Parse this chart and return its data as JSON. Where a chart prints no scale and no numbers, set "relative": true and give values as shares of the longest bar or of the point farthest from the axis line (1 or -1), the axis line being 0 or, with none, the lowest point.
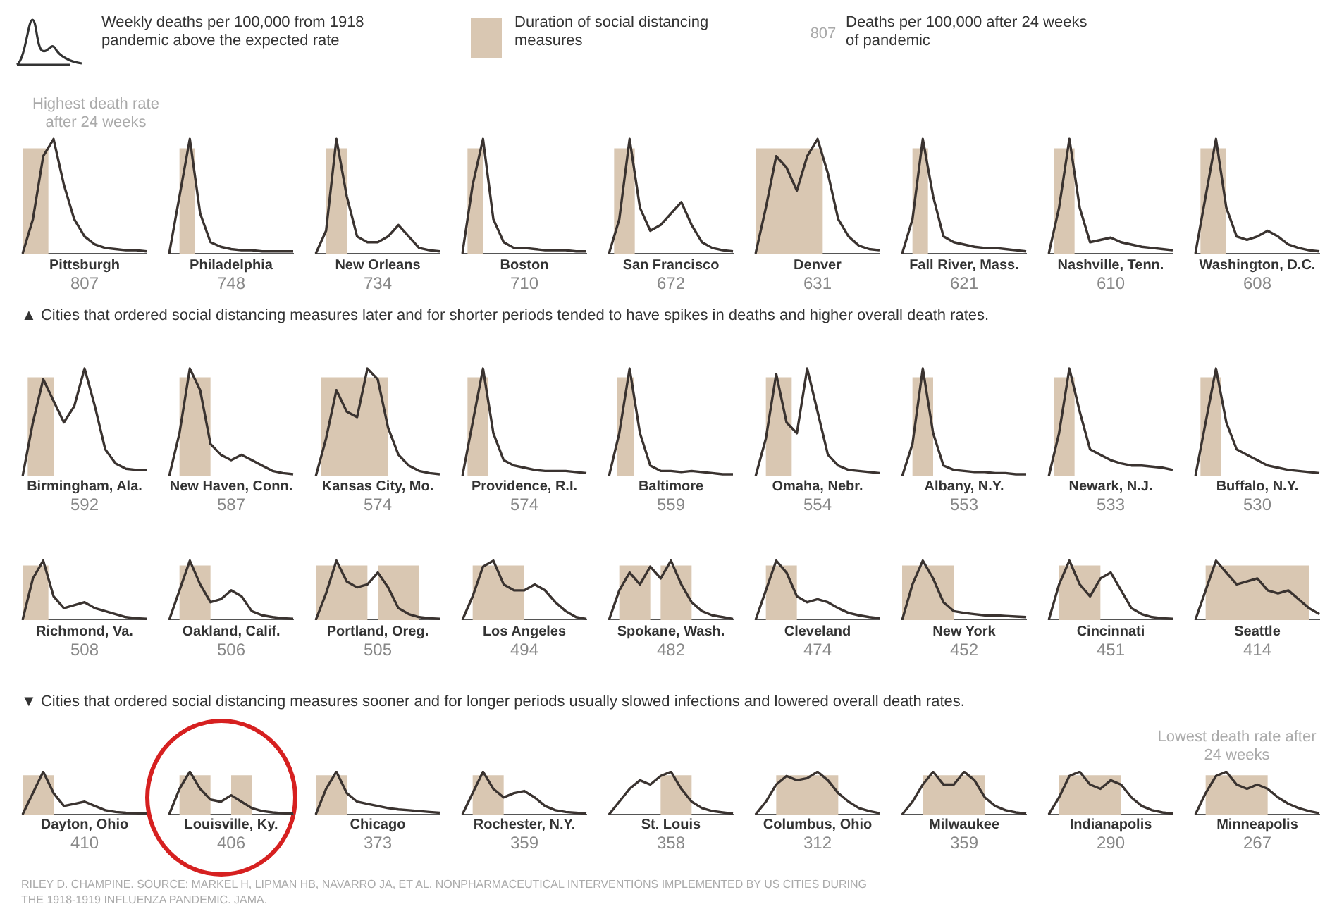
{
  "chart_data": [
    {
      "type": "other",
      "annotations": [
        "Weekly deaths per 100,000 from 1918 pandemic above the expected rate",
        "Duration of social distancing measures",
        "807",
        "Deaths per 100,000 after 24 weeks of pandemic",
        "Highest death rate after 24 weeks",
        "▲ Cities that ordered social distancing measures later and for shorter periods tended to have spikes in deaths and higher overall death rates.",
        "▼ Cities that ordered social distancing measures sooner and for longer periods usually slowed infections and lowered overall death rates.",
        "Lowest death rate after 24 weeks",
        "RILEY D. CHAMPINE. SOURCE: MARKEL H, LIPMAN HB, NAVARRO JA, ET AL. NONPHARMACEUTICAL INTERVENTIONS IMPLEMENTED BY US CITIES DURING THE 1918-1919 INFLUENZA PANDEMIC. JAMA."
      ]
    },
    {
      "type": "line",
      "title": "Pittsburgh",
      "annotations": [
        "807"
      ],
      "relative": true,
      "tick_labels": false,
      "color": "#3a3330",
      "categories": [
        null,
        null,
        null,
        null,
        null,
        null,
        null,
        null,
        null,
        null,
        null,
        null,
        null
      ],
      "values": [
        0,
        0.3,
        0.85,
        1,
        0.6,
        0.3,
        0.15,
        0.08,
        0.05,
        0.04,
        0.03,
        0.03,
        0.02
      ]
    },
    {
      "type": "line",
      "title": "Philadelphia",
      "annotations": [
        "748"
      ],
      "relative": true,
      "tick_labels": false,
      "color": "#3a3330",
      "categories": [
        null,
        null,
        null,
        null,
        null,
        null,
        null,
        null,
        null,
        null,
        null,
        null,
        null
      ],
      "values": [
        0,
        0.5,
        1,
        0.35,
        0.1,
        0.06,
        0.04,
        0.03,
        0.03,
        0.02,
        0.02,
        0.02,
        0.02
      ]
    },
    {
      "type": "line",
      "title": "New Orleans",
      "annotations": [
        "734"
      ],
      "relative": true,
      "tick_labels": false,
      "color": "#3a3330",
      "categories": [
        null,
        null,
        null,
        null,
        null,
        null,
        null,
        null,
        null,
        null,
        null,
        null,
        null
      ],
      "values": [
        0,
        0.2,
        1,
        0.5,
        0.15,
        0.1,
        0.1,
        0.15,
        0.25,
        0.15,
        0.05,
        0.03,
        0.02
      ]
    },
    {
      "type": "line",
      "title": "Boston",
      "annotations": [
        "710"
      ],
      "relative": true,
      "tick_labels": false,
      "color": "#3a3330",
      "categories": [
        null,
        null,
        null,
        null,
        null,
        null,
        null,
        null,
        null,
        null,
        null,
        null,
        null
      ],
      "values": [
        0,
        0.6,
        1,
        0.3,
        0.1,
        0.05,
        0.05,
        0.04,
        0.03,
        0.03,
        0.03,
        0.02,
        0.02
      ]
    },
    {
      "type": "line",
      "title": "San Francisco",
      "annotations": [
        "672"
      ],
      "relative": true,
      "tick_labels": false,
      "color": "#3a3330",
      "categories": [
        null,
        null,
        null,
        null,
        null,
        null,
        null,
        null,
        null,
        null,
        null,
        null,
        null
      ],
      "values": [
        0,
        0.3,
        1,
        0.4,
        0.2,
        0.25,
        0.35,
        0.45,
        0.25,
        0.1,
        0.05,
        0.03,
        0.02
      ]
    },
    {
      "type": "line",
      "title": "Denver",
      "annotations": [
        "631"
      ],
      "relative": true,
      "tick_labels": false,
      "color": "#3a3330",
      "categories": [
        null,
        null,
        null,
        null,
        null,
        null,
        null,
        null,
        null,
        null,
        null,
        null,
        null
      ],
      "values": [
        0,
        0.4,
        0.85,
        0.75,
        0.55,
        0.85,
        1,
        0.7,
        0.3,
        0.15,
        0.07,
        0.04,
        0.03
      ]
    },
    {
      "type": "line",
      "title": "Fall River, Mass.",
      "annotations": [
        "621"
      ],
      "relative": true,
      "tick_labels": false,
      "color": "#3a3330",
      "categories": [
        null,
        null,
        null,
        null,
        null,
        null,
        null,
        null,
        null,
        null,
        null,
        null,
        null
      ],
      "values": [
        0,
        0.3,
        1,
        0.5,
        0.15,
        0.1,
        0.08,
        0.06,
        0.05,
        0.05,
        0.04,
        0.03,
        0.02
      ]
    },
    {
      "type": "line",
      "title": "Nashville, Tenn.",
      "annotations": [
        "610"
      ],
      "relative": true,
      "tick_labels": false,
      "color": "#3a3330",
      "categories": [
        null,
        null,
        null,
        null,
        null,
        null,
        null,
        null,
        null,
        null,
        null,
        null,
        null
      ],
      "values": [
        0,
        0.4,
        1,
        0.4,
        0.1,
        0.12,
        0.14,
        0.1,
        0.08,
        0.06,
        0.05,
        0.04,
        0.03
      ]
    },
    {
      "type": "line",
      "title": "Washington, D.C.",
      "annotations": [
        "608"
      ],
      "relative": true,
      "tick_labels": false,
      "color": "#3a3330",
      "categories": [
        null,
        null,
        null,
        null,
        null,
        null,
        null,
        null,
        null,
        null,
        null,
        null,
        null
      ],
      "values": [
        0,
        0.5,
        1,
        0.4,
        0.15,
        0.12,
        0.15,
        0.2,
        0.15,
        0.08,
        0.05,
        0.03,
        0.02
      ]
    },
    {
      "type": "line",
      "title": "Birmingham, Ala.",
      "annotations": [
        "592"
      ],
      "relative": true,
      "tick_labels": false,
      "color": "#3a3330",
      "categories": [
        null,
        null,
        null,
        null,
        null,
        null,
        null,
        null,
        null,
        null,
        null,
        null,
        null
      ],
      "values": [
        0,
        0.5,
        0.9,
        0.7,
        0.5,
        0.65,
        1,
        0.65,
        0.25,
        0.12,
        0.07,
        0.06,
        0.06
      ]
    },
    {
      "type": "line",
      "title": "New Haven, Conn.",
      "annotations": [
        "587"
      ],
      "relative": true,
      "tick_labels": false,
      "color": "#3a3330",
      "categories": [
        null,
        null,
        null,
        null,
        null,
        null,
        null,
        null,
        null,
        null,
        null,
        null,
        null
      ],
      "values": [
        0,
        0.4,
        1,
        0.8,
        0.3,
        0.2,
        0.15,
        0.2,
        0.15,
        0.1,
        0.05,
        0.03,
        0.02
      ]
    },
    {
      "type": "line",
      "title": "Kansas City, Mo.",
      "annotations": [
        "574"
      ],
      "relative": true,
      "tick_labels": false,
      "color": "#3a3330",
      "categories": [
        null,
        null,
        null,
        null,
        null,
        null,
        null,
        null,
        null,
        null,
        null,
        null,
        null
      ],
      "values": [
        0,
        0.35,
        0.8,
        0.6,
        0.55,
        1,
        0.9,
        0.45,
        0.2,
        0.1,
        0.05,
        0.03,
        0.02
      ]
    },
    {
      "type": "line",
      "title": "Providence, R.I.",
      "annotations": [
        "574"
      ],
      "relative": true,
      "tick_labels": false,
      "color": "#3a3330",
      "categories": [
        null,
        null,
        null,
        null,
        null,
        null,
        null,
        null,
        null,
        null,
        null,
        null,
        null
      ],
      "values": [
        0,
        0.5,
        1,
        0.4,
        0.15,
        0.1,
        0.08,
        0.06,
        0.05,
        0.05,
        0.05,
        0.04,
        0.03
      ]
    },
    {
      "type": "line",
      "title": "Baltimore",
      "annotations": [
        "559"
      ],
      "relative": true,
      "tick_labels": false,
      "color": "#3a3330",
      "categories": [
        null,
        null,
        null,
        null,
        null,
        null,
        null,
        null,
        null,
        null,
        null,
        null,
        null
      ],
      "values": [
        0,
        0.4,
        1,
        0.4,
        0.1,
        0.05,
        0.05,
        0.04,
        0.05,
        0.04,
        0.03,
        0.02,
        0.02
      ]
    },
    {
      "type": "line",
      "title": "Omaha, Nebr.",
      "annotations": [
        "554"
      ],
      "relative": true,
      "tick_labels": false,
      "color": "#3a3330",
      "categories": [
        null,
        null,
        null,
        null,
        null,
        null,
        null,
        null,
        null,
        null,
        null,
        null,
        null
      ],
      "values": [
        0,
        0.35,
        0.95,
        0.5,
        0.4,
        1,
        0.6,
        0.2,
        0.1,
        0.06,
        0.05,
        0.04,
        0.03
      ]
    },
    {
      "type": "line",
      "title": "Albany, N.Y.",
      "annotations": [
        "553"
      ],
      "relative": true,
      "tick_labels": false,
      "color": "#3a3330",
      "categories": [
        null,
        null,
        null,
        null,
        null,
        null,
        null,
        null,
        null,
        null,
        null,
        null,
        null
      ],
      "values": [
        0,
        0.3,
        1,
        0.4,
        0.1,
        0.06,
        0.05,
        0.04,
        0.04,
        0.03,
        0.03,
        0.02,
        0.02
      ]
    },
    {
      "type": "line",
      "title": "Newark, N.J.",
      "annotations": [
        "533"
      ],
      "relative": true,
      "tick_labels": false,
      "color": "#3a3330",
      "categories": [
        null,
        null,
        null,
        null,
        null,
        null,
        null,
        null,
        null,
        null,
        null,
        null,
        null
      ],
      "values": [
        0,
        0.4,
        1,
        0.6,
        0.25,
        0.2,
        0.15,
        0.12,
        0.1,
        0.1,
        0.09,
        0.08,
        0.06
      ]
    },
    {
      "type": "line",
      "title": "Buffalo, N.Y.",
      "annotations": [
        "530"
      ],
      "relative": true,
      "tick_labels": false,
      "color": "#3a3330",
      "categories": [
        null,
        null,
        null,
        null,
        null,
        null,
        null,
        null,
        null,
        null,
        null,
        null,
        null
      ],
      "values": [
        0,
        0.5,
        1,
        0.5,
        0.25,
        0.2,
        0.15,
        0.1,
        0.08,
        0.06,
        0.05,
        0.04,
        0.03
      ]
    },
    {
      "type": "line",
      "title": "Richmond, Va.",
      "annotations": [
        "508"
      ],
      "relative": true,
      "tick_labels": false,
      "color": "#3a3330",
      "categories": [
        null,
        null,
        null,
        null,
        null,
        null,
        null,
        null,
        null,
        null,
        null,
        null,
        null
      ],
      "values": [
        0,
        0.7,
        1,
        0.4,
        0.2,
        0.25,
        0.3,
        0.2,
        0.15,
        0.1,
        0.05,
        0.03,
        0.02
      ]
    },
    {
      "type": "line",
      "title": "Oakland, Calif.",
      "annotations": [
        "506"
      ],
      "relative": true,
      "tick_labels": false,
      "color": "#3a3330",
      "categories": [
        null,
        null,
        null,
        null,
        null,
        null,
        null,
        null,
        null,
        null,
        null,
        null,
        null
      ],
      "values": [
        0,
        0.5,
        1,
        0.6,
        0.3,
        0.35,
        0.5,
        0.4,
        0.15,
        0.08,
        0.05,
        0.03,
        0.02
      ]
    },
    {
      "type": "line",
      "title": "Portland, Oreg.",
      "annotations": [
        "505"
      ],
      "relative": true,
      "tick_labels": false,
      "color": "#3a3330",
      "categories": [
        null,
        null,
        null,
        null,
        null,
        null,
        null,
        null,
        null,
        null,
        null,
        null,
        null
      ],
      "values": [
        0,
        0.45,
        1,
        0.65,
        0.55,
        0.6,
        0.8,
        0.55,
        0.2,
        0.1,
        0.05,
        0.03,
        0.02
      ]
    },
    {
      "type": "line",
      "title": "Los Angeles",
      "annotations": [
        "494"
      ],
      "relative": true,
      "tick_labels": false,
      "color": "#3a3330",
      "categories": [
        null,
        null,
        null,
        null,
        null,
        null,
        null,
        null,
        null,
        null,
        null,
        null,
        null
      ],
      "values": [
        0,
        0.4,
        0.9,
        1,
        0.6,
        0.5,
        0.5,
        0.6,
        0.5,
        0.3,
        0.15,
        0.05,
        0.02
      ]
    },
    {
      "type": "line",
      "title": "Spokane, Wash.",
      "annotations": [
        "482"
      ],
      "relative": true,
      "tick_labels": false,
      "color": "#3a3330",
      "categories": [
        null,
        null,
        null,
        null,
        null,
        null,
        null,
        null,
        null,
        null,
        null,
        null,
        null
      ],
      "values": [
        0,
        0.5,
        0.8,
        0.6,
        0.9,
        0.7,
        1,
        0.6,
        0.3,
        0.15,
        0.08,
        0.05,
        0.02
      ]
    },
    {
      "type": "line",
      "title": "Cleveland",
      "annotations": [
        "474"
      ],
      "relative": true,
      "tick_labels": false,
      "color": "#3a3330",
      "categories": [
        null,
        null,
        null,
        null,
        null,
        null,
        null,
        null,
        null,
        null,
        null,
        null,
        null
      ],
      "values": [
        0,
        0.5,
        1,
        0.8,
        0.4,
        0.3,
        0.35,
        0.3,
        0.2,
        0.12,
        0.08,
        0.05,
        0.03
      ]
    },
    {
      "type": "line",
      "title": "New York",
      "annotations": [
        "452"
      ],
      "relative": true,
      "tick_labels": false,
      "color": "#3a3330",
      "categories": [
        null,
        null,
        null,
        null,
        null,
        null,
        null,
        null,
        null,
        null,
        null,
        null,
        null
      ],
      "values": [
        0,
        0.6,
        1,
        0.7,
        0.3,
        0.15,
        0.12,
        0.1,
        0.08,
        0.08,
        0.07,
        0.06,
        0.05
      ]
    },
    {
      "type": "line",
      "title": "Cincinnati",
      "annotations": [
        "451"
      ],
      "relative": true,
      "tick_labels": false,
      "color": "#3a3330",
      "categories": [
        null,
        null,
        null,
        null,
        null,
        null,
        null,
        null,
        null,
        null,
        null,
        null,
        null
      ],
      "values": [
        0,
        0.6,
        1,
        0.6,
        0.4,
        0.7,
        0.8,
        0.5,
        0.2,
        0.1,
        0.05,
        0.03,
        0.02
      ]
    },
    {
      "type": "line",
      "title": "Seattle",
      "annotations": [
        "414"
      ],
      "relative": true,
      "tick_labels": false,
      "color": "#3a3330",
      "categories": [
        null,
        null,
        null,
        null,
        null,
        null,
        null,
        null,
        null,
        null,
        null,
        null,
        null
      ],
      "values": [
        0,
        0.5,
        1,
        0.8,
        0.6,
        0.65,
        0.7,
        0.5,
        0.45,
        0.5,
        0.35,
        0.2,
        0.1
      ]
    },
    {
      "type": "line",
      "title": "Dayton, Ohio",
      "annotations": [
        "410"
      ],
      "relative": true,
      "tick_labels": false,
      "color": "#3a3330",
      "categories": [
        null,
        null,
        null,
        null,
        null,
        null,
        null,
        null,
        null,
        null,
        null,
        null,
        null
      ],
      "values": [
        0,
        0.5,
        1,
        0.5,
        0.2,
        0.25,
        0.3,
        0.2,
        0.1,
        0.06,
        0.04,
        0.03,
        0.02
      ]
    },
    {
      "type": "line",
      "title": "Louisville, Ky.",
      "annotations": [
        "406"
      ],
      "relative": true,
      "tick_labels": false,
      "color": "#3a3330",
      "categories": [
        null,
        null,
        null,
        null,
        null,
        null,
        null,
        null,
        null,
        null,
        null,
        null,
        null
      ],
      "values": [
        0,
        0.6,
        1,
        0.6,
        0.35,
        0.3,
        0.45,
        0.3,
        0.15,
        0.08,
        0.05,
        0.03,
        0.02
      ]
    },
    {
      "type": "line",
      "title": "Chicago",
      "annotations": [
        "373"
      ],
      "relative": true,
      "tick_labels": false,
      "color": "#3a3330",
      "categories": [
        null,
        null,
        null,
        null,
        null,
        null,
        null,
        null,
        null,
        null,
        null,
        null,
        null
      ],
      "values": [
        0,
        0.6,
        1,
        0.5,
        0.3,
        0.25,
        0.2,
        0.15,
        0.12,
        0.1,
        0.08,
        0.06,
        0.04
      ]
    },
    {
      "type": "line",
      "title": "Rochester, N.Y.",
      "annotations": [
        "359"
      ],
      "relative": true,
      "tick_labels": false,
      "color": "#3a3330",
      "categories": [
        null,
        null,
        null,
        null,
        null,
        null,
        null,
        null,
        null,
        null,
        null,
        null,
        null
      ],
      "values": [
        0,
        0.5,
        1,
        0.6,
        0.4,
        0.5,
        0.55,
        0.4,
        0.2,
        0.1,
        0.06,
        0.04,
        0.02
      ]
    },
    {
      "type": "line",
      "title": "St. Louis",
      "annotations": [
        "358"
      ],
      "relative": true,
      "tick_labels": false,
      "color": "#3a3330",
      "categories": [
        null,
        null,
        null,
        null,
        null,
        null,
        null,
        null,
        null,
        null,
        null,
        null,
        null
      ],
      "values": [
        0,
        0.3,
        0.6,
        0.8,
        0.7,
        0.9,
        1,
        0.6,
        0.3,
        0.15,
        0.08,
        0.05,
        0.02
      ]
    },
    {
      "type": "line",
      "title": "Columbus, Ohio",
      "annotations": [
        "312"
      ],
      "relative": true,
      "tick_labels": false,
      "color": "#3a3330",
      "categories": [
        null,
        null,
        null,
        null,
        null,
        null,
        null,
        null,
        null,
        null,
        null,
        null,
        null
      ],
      "values": [
        0,
        0.3,
        0.7,
        0.9,
        0.8,
        0.85,
        1,
        0.8,
        0.5,
        0.3,
        0.15,
        0.08,
        0.03
      ]
    },
    {
      "type": "line",
      "title": "Milwaukee",
      "annotations": [
        "359"
      ],
      "relative": true,
      "tick_labels": false,
      "color": "#3a3330",
      "categories": [
        null,
        null,
        null,
        null,
        null,
        null,
        null,
        null,
        null,
        null,
        null,
        null,
        null
      ],
      "values": [
        0,
        0.3,
        0.7,
        1,
        0.7,
        0.7,
        1,
        0.8,
        0.4,
        0.2,
        0.1,
        0.05,
        0.02
      ]
    },
    {
      "type": "line",
      "title": "Indianapolis",
      "annotations": [
        "290"
      ],
      "relative": true,
      "tick_labels": false,
      "color": "#3a3330",
      "categories": [
        null,
        null,
        null,
        null,
        null,
        null,
        null,
        null,
        null,
        null,
        null,
        null,
        null
      ],
      "values": [
        0,
        0.4,
        0.9,
        1,
        0.7,
        0.6,
        0.8,
        0.7,
        0.4,
        0.2,
        0.1,
        0.05,
        0.02
      ]
    },
    {
      "type": "line",
      "title": "Minneapolis",
      "annotations": [
        "267"
      ],
      "relative": true,
      "tick_labels": false,
      "color": "#3a3330",
      "categories": [
        null,
        null,
        null,
        null,
        null,
        null,
        null,
        null,
        null,
        null,
        null,
        null,
        null
      ],
      "values": [
        0,
        0.5,
        0.9,
        1,
        0.7,
        0.6,
        0.7,
        0.6,
        0.4,
        0.25,
        0.15,
        0.08,
        0.03
      ]
    }
  ]
}
